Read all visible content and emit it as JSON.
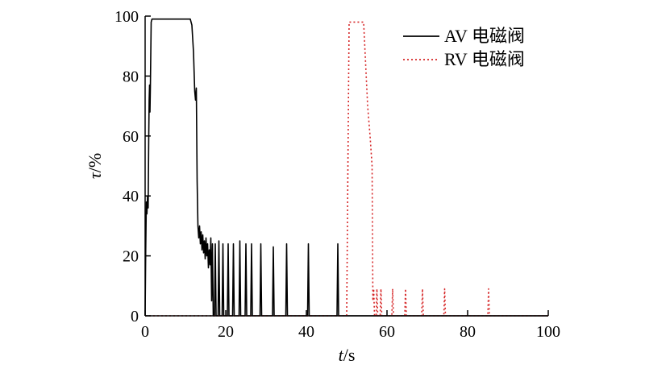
{
  "chart_data": {
    "type": "line",
    "xlabel_var": "t",
    "xlabel_unit": "/s",
    "ylabel_var": "τ",
    "ylabel_unit": "/%",
    "xlim": [
      0,
      100
    ],
    "ylim": [
      0,
      100
    ],
    "xticks": [
      0,
      20,
      40,
      60,
      80,
      100
    ],
    "yticks": [
      0,
      20,
      40,
      60,
      80,
      100
    ],
    "xtick_labels": [
      "0",
      "20",
      "40",
      "60",
      "80",
      "100"
    ],
    "ytick_labels": [
      "0",
      "20",
      "40",
      "60",
      "80",
      "100"
    ],
    "grid": false,
    "legend_position": "top-right",
    "series": [
      {
        "name": "AV 电磁阀",
        "color": "#000000",
        "style": "solid",
        "points": [
          [
            0.0,
            0
          ],
          [
            0.15,
            22
          ],
          [
            0.3,
            38
          ],
          [
            0.45,
            34
          ],
          [
            0.6,
            40
          ],
          [
            0.75,
            36
          ],
          [
            0.9,
            60
          ],
          [
            1.0,
            72
          ],
          [
            1.1,
            77
          ],
          [
            1.2,
            68
          ],
          [
            1.3,
            76
          ],
          [
            1.5,
            98
          ],
          [
            1.7,
            99
          ],
          [
            3,
            99
          ],
          [
            6,
            99
          ],
          [
            9,
            99
          ],
          [
            11.2,
            99
          ],
          [
            11.6,
            97
          ],
          [
            12.0,
            88
          ],
          [
            12.3,
            75
          ],
          [
            12.5,
            72
          ],
          [
            12.7,
            76
          ],
          [
            12.9,
            45
          ],
          [
            13.1,
            30
          ],
          [
            13.3,
            26
          ],
          [
            13.5,
            30
          ],
          [
            13.7,
            24
          ],
          [
            13.9,
            28
          ],
          [
            14.1,
            22
          ],
          [
            14.3,
            27
          ],
          [
            14.5,
            21
          ],
          [
            14.7,
            25
          ],
          [
            14.9,
            19
          ],
          [
            15.1,
            26
          ],
          [
            15.3,
            20
          ],
          [
            15.5,
            24
          ],
          [
            15.7,
            16
          ],
          [
            15.9,
            22
          ],
          [
            16.1,
            17
          ],
          [
            16.3,
            26
          ],
          [
            16.5,
            5
          ],
          [
            16.7,
            24
          ],
          [
            16.9,
            0
          ],
          [
            17.2,
            0
          ],
          [
            17.4,
            24
          ],
          [
            17.6,
            0
          ],
          [
            18.1,
            0
          ],
          [
            18.3,
            25
          ],
          [
            18.5,
            0
          ],
          [
            19.1,
            0
          ],
          [
            19.3,
            24
          ],
          [
            19.5,
            0
          ],
          [
            20.4,
            0
          ],
          [
            20.6,
            24
          ],
          [
            20.8,
            0
          ],
          [
            21.7,
            0
          ],
          [
            21.9,
            24
          ],
          [
            22.1,
            0
          ],
          [
            23.3,
            0
          ],
          [
            23.5,
            25
          ],
          [
            23.7,
            0
          ],
          [
            24.8,
            0
          ],
          [
            25.0,
            24
          ],
          [
            25.2,
            0
          ],
          [
            26.2,
            0
          ],
          [
            26.4,
            24
          ],
          [
            26.6,
            0
          ],
          [
            28.5,
            0
          ],
          [
            28.7,
            24
          ],
          [
            28.9,
            0
          ],
          [
            31.6,
            0
          ],
          [
            31.8,
            23
          ],
          [
            32.0,
            0
          ],
          [
            34.9,
            0
          ],
          [
            35.1,
            24
          ],
          [
            35.3,
            0
          ],
          [
            40.3,
            0
          ],
          [
            40.5,
            24
          ],
          [
            40.7,
            0
          ],
          [
            47.6,
            0
          ],
          [
            47.8,
            24
          ],
          [
            48.0,
            0
          ],
          [
            100,
            0
          ]
        ]
      },
      {
        "name": "RV 电磁阀",
        "color": "#d62728",
        "style": "dotted",
        "points": [
          [
            0,
            0
          ],
          [
            50.0,
            0
          ],
          [
            50.6,
            98
          ],
          [
            54.2,
            98
          ],
          [
            55.2,
            70
          ],
          [
            55.8,
            60
          ],
          [
            56.3,
            50
          ],
          [
            56.5,
            5
          ],
          [
            56.7,
            9
          ],
          [
            56.9,
            0
          ],
          [
            57.3,
            0
          ],
          [
            57.5,
            9
          ],
          [
            57.7,
            0
          ],
          [
            58.3,
            0
          ],
          [
            58.5,
            9
          ],
          [
            58.7,
            0
          ],
          [
            61.2,
            0
          ],
          [
            61.4,
            9
          ],
          [
            61.6,
            0
          ],
          [
            64.4,
            0
          ],
          [
            64.6,
            9
          ],
          [
            64.8,
            0
          ],
          [
            68.6,
            0
          ],
          [
            68.8,
            9
          ],
          [
            69.0,
            0
          ],
          [
            74.1,
            0
          ],
          [
            74.3,
            9
          ],
          [
            74.5,
            0
          ],
          [
            85.0,
            0
          ],
          [
            85.2,
            9
          ],
          [
            85.4,
            0
          ],
          [
            100,
            0
          ]
        ]
      }
    ]
  }
}
